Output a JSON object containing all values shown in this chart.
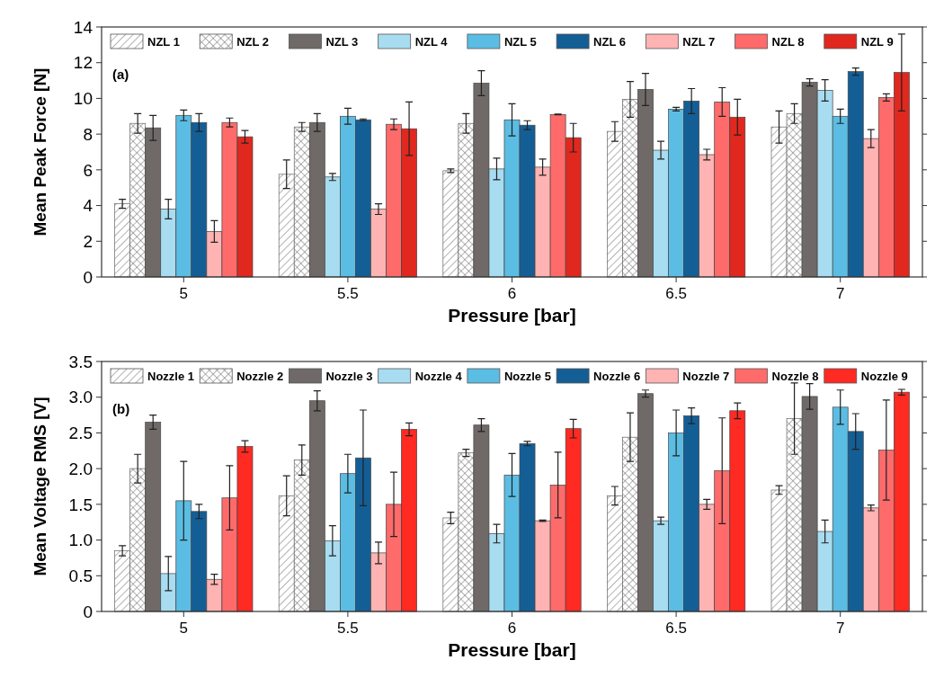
{
  "chart_data": [
    {
      "type": "bar",
      "ylabel": "Mean  Peak Force [N]",
      "xlabel": "Pressure [bar]",
      "categories": [
        "5",
        "5.5",
        "6",
        "6.5",
        "7"
      ],
      "ylim": [
        0,
        14
      ],
      "yticks": [
        0,
        2,
        4,
        6,
        8,
        10,
        12,
        14
      ],
      "legend": "top",
      "annotations": [
        "(a)"
      ],
      "series": [
        {
          "name": "NZL 1",
          "color": "#666666",
          "values": [
            4.1,
            5.75,
            5.95,
            8.15,
            8.4
          ],
          "errors": [
            0.25,
            0.8,
            0.1,
            0.55,
            0.9
          ]
        },
        {
          "name": "NZL 2",
          "color": "#666666",
          "values": [
            8.6,
            8.4,
            8.6,
            9.95,
            9.15
          ],
          "errors": [
            0.55,
            0.25,
            0.55,
            1.0,
            0.55
          ]
        },
        {
          "name": "NZL 3",
          "color": "#6f6a67",
          "values": [
            8.35,
            8.65,
            10.85,
            10.5,
            10.9
          ],
          "errors": [
            0.7,
            0.5,
            0.7,
            0.9,
            0.2
          ]
        },
        {
          "name": "NZL 4",
          "color": "#a8dcf0",
          "values": [
            3.8,
            5.6,
            6.05,
            7.1,
            10.45
          ],
          "errors": [
            0.55,
            0.2,
            0.6,
            0.5,
            0.6
          ]
        },
        {
          "name": "NZL 5",
          "color": "#5bbde3",
          "values": [
            9.05,
            9.0,
            8.8,
            9.4,
            9.0
          ],
          "errors": [
            0.3,
            0.45,
            0.9,
            0.1,
            0.4
          ]
        },
        {
          "name": "NZL 6",
          "color": "#145e96",
          "values": [
            8.65,
            8.8,
            8.5,
            9.85,
            11.5
          ],
          "errors": [
            0.5,
            0.05,
            0.25,
            0.7,
            0.2
          ]
        },
        {
          "name": "NZL 7",
          "color": "#ffb3b3",
          "values": [
            2.55,
            3.8,
            6.15,
            6.85,
            7.75
          ],
          "errors": [
            0.6,
            0.3,
            0.45,
            0.3,
            0.5
          ]
        },
        {
          "name": "NZL 8",
          "color": "#ff6b6b",
          "values": [
            8.65,
            8.55,
            9.1,
            9.8,
            10.05
          ],
          "errors": [
            0.25,
            0.3,
            0.02,
            0.8,
            0.2
          ]
        },
        {
          "name": "NZL 9",
          "color": "#e0281f",
          "values": [
            7.85,
            8.3,
            7.8,
            8.95,
            11.45
          ],
          "errors": [
            0.35,
            1.5,
            0.8,
            1.0,
            2.15
          ]
        }
      ]
    },
    {
      "type": "bar",
      "ylabel": "Mean Voltage RMS [V]",
      "xlabel": "Pressure [bar]",
      "categories": [
        "5",
        "5.5",
        "6",
        "6.5",
        "7"
      ],
      "ylim": [
        0,
        3.5
      ],
      "yticks": [
        0,
        0.5,
        {
          "value": 1,
          "label": "1.0"
        },
        1.5,
        {
          "value": 2,
          "label": "2.0"
        },
        2.5,
        {
          "value": 3,
          "label": "3.0"
        },
        3.5
      ],
      "legend": "top",
      "annotations": [
        "(b)"
      ],
      "series": [
        {
          "name": "Nozzle 1",
          "color": "#666666",
          "values": [
            0.85,
            1.62,
            1.31,
            1.62,
            1.7
          ],
          "errors": [
            0.07,
            0.28,
            0.08,
            0.13,
            0.06
          ]
        },
        {
          "name": "Nozzle 2",
          "color": "#666666",
          "values": [
            2.0,
            2.12,
            2.22,
            2.44,
            2.7
          ],
          "errors": [
            0.2,
            0.21,
            0.05,
            0.34,
            0.5
          ]
        },
        {
          "name": "Nozzle 3",
          "color": "#6f6a67",
          "values": [
            2.65,
            2.95,
            2.61,
            3.05,
            3.01
          ],
          "errors": [
            0.1,
            0.14,
            0.09,
            0.05,
            0.18
          ]
        },
        {
          "name": "Nozzle 4",
          "color": "#a8dcf0",
          "values": [
            0.53,
            0.99,
            1.09,
            1.27,
            1.12
          ],
          "errors": [
            0.24,
            0.21,
            0.13,
            0.05,
            0.16
          ]
        },
        {
          "name": "Nozzle 5",
          "color": "#5bbde3",
          "values": [
            1.55,
            1.93,
            1.91,
            2.5,
            2.86
          ],
          "errors": [
            0.55,
            0.27,
            0.3,
            0.32,
            0.24
          ]
        },
        {
          "name": "Nozzle 6",
          "color": "#145e96",
          "values": [
            1.4,
            2.15,
            2.35,
            2.74,
            2.52
          ],
          "errors": [
            0.1,
            0.67,
            0.03,
            0.11,
            0.25
          ]
        },
        {
          "name": "Nozzle 7",
          "color": "#ffb3b3",
          "values": [
            0.45,
            0.82,
            1.27,
            1.5,
            1.45
          ],
          "errors": [
            0.07,
            0.15,
            0.01,
            0.07,
            0.04
          ]
        },
        {
          "name": "Nozzle 8",
          "color": "#ff6b6b",
          "values": [
            1.59,
            1.5,
            1.77,
            1.97,
            2.26
          ],
          "errors": [
            0.45,
            0.45,
            0.46,
            0.74,
            0.7
          ]
        },
        {
          "name": "Nozzle 9",
          "color": "#ff2a22",
          "values": [
            2.31,
            2.55,
            2.56,
            2.81,
            3.07
          ],
          "errors": [
            0.08,
            0.09,
            0.13,
            0.11,
            0.04
          ]
        }
      ]
    }
  ]
}
